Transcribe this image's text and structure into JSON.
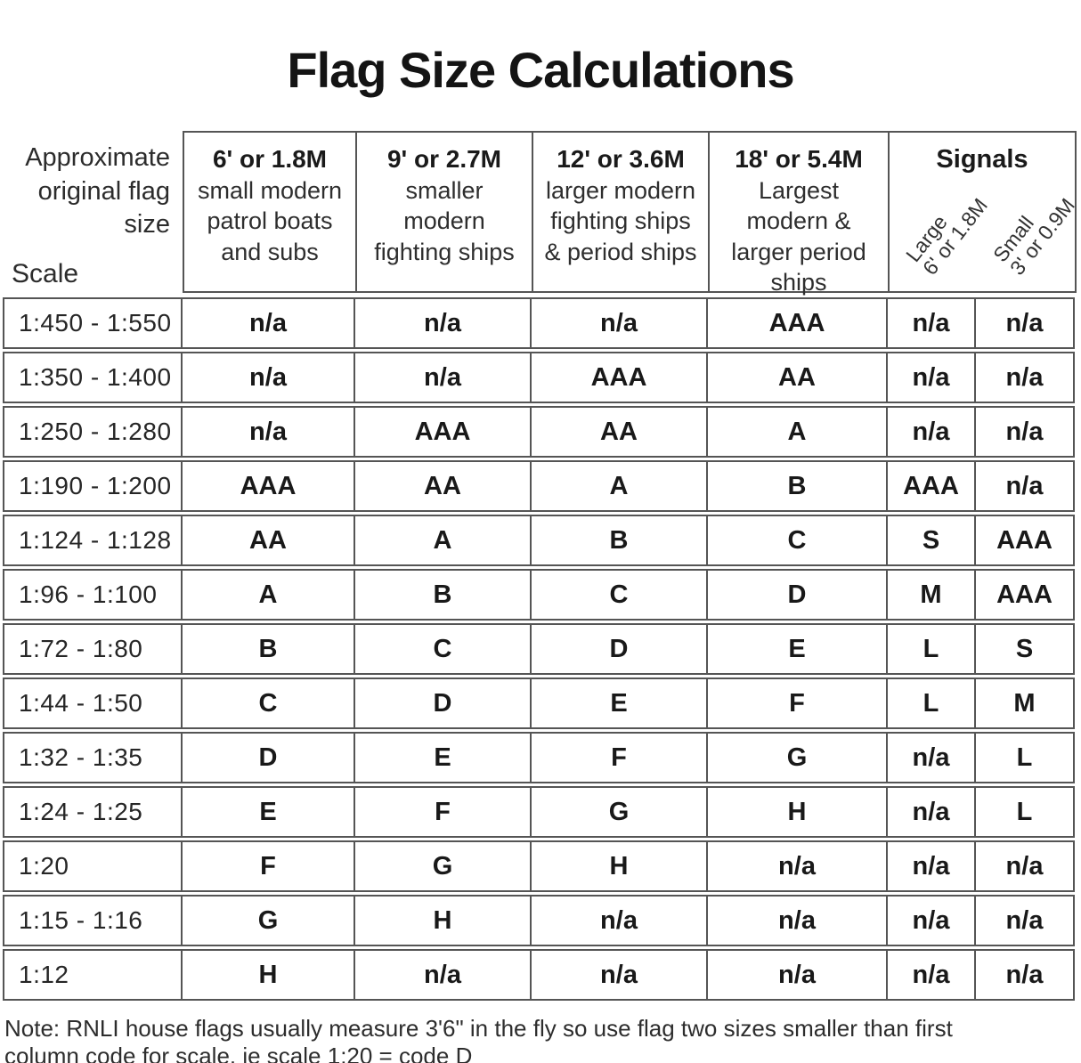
{
  "title": "Flag Size Calculations",
  "corner_header": {
    "approx_lines": [
      "Approximate",
      "original flag",
      "size"
    ],
    "scale_label": "Scale"
  },
  "columns": [
    {
      "size": "6' or 1.8M",
      "desc_lines": [
        "small modern",
        "patrol boats",
        "and subs"
      ]
    },
    {
      "size": "9' or 2.7M",
      "desc_lines": [
        "smaller",
        "modern",
        "fighting ships"
      ]
    },
    {
      "size": "12' or 3.6M",
      "desc_lines": [
        "larger modern",
        "fighting ships",
        "& period ships"
      ]
    },
    {
      "size": "18' or 5.4M",
      "desc_lines": [
        "Largest",
        "modern &",
        "larger period",
        "ships"
      ]
    }
  ],
  "signals": {
    "title": "Signals",
    "large_lines": [
      "Large",
      "6' or 1.8M"
    ],
    "small_lines": [
      "Small",
      "3' or 0.9M"
    ]
  },
  "rows": [
    {
      "scale": "1:450 - 1:550",
      "codes": [
        "n/a",
        "n/a",
        "n/a",
        "AAA",
        "n/a",
        "n/a"
      ]
    },
    {
      "scale": "1:350 - 1:400",
      "codes": [
        "n/a",
        "n/a",
        "AAA",
        "AA",
        "n/a",
        "n/a"
      ]
    },
    {
      "scale": "1:250 - 1:280",
      "codes": [
        "n/a",
        "AAA",
        "AA",
        "A",
        "n/a",
        "n/a"
      ]
    },
    {
      "scale": "1:190 - 1:200",
      "codes": [
        "AAA",
        "AA",
        "A",
        "B",
        "AAA",
        "n/a"
      ]
    },
    {
      "scale": "1:124 - 1:128",
      "codes": [
        "AA",
        "A",
        "B",
        "C",
        "S",
        "AAA"
      ]
    },
    {
      "scale": "1:96 - 1:100",
      "codes": [
        "A",
        "B",
        "C",
        "D",
        "M",
        "AAA"
      ]
    },
    {
      "scale": "1:72 - 1:80",
      "codes": [
        "B",
        "C",
        "D",
        "E",
        "L",
        "S"
      ]
    },
    {
      "scale": "1:44 - 1:50",
      "codes": [
        "C",
        "D",
        "E",
        "F",
        "L",
        "M"
      ]
    },
    {
      "scale": "1:32 - 1:35",
      "codes": [
        "D",
        "E",
        "F",
        "G",
        "n/a",
        "L"
      ]
    },
    {
      "scale": "1:24 - 1:25",
      "codes": [
        "E",
        "F",
        "G",
        "H",
        "n/a",
        "L"
      ]
    },
    {
      "scale": "1:20",
      "codes": [
        "F",
        "G",
        "H",
        "n/a",
        "n/a",
        "n/a"
      ]
    },
    {
      "scale": "1:15 - 1:16",
      "codes": [
        "G",
        "H",
        "n/a",
        "n/a",
        "n/a",
        "n/a"
      ]
    },
    {
      "scale": "1:12",
      "codes": [
        "H",
        "n/a",
        "n/a",
        "n/a",
        "n/a",
        "n/a"
      ]
    }
  ],
  "note_lines": [
    "Note: RNLI house flags usually measure 3'6\" in the fly so use flag two sizes smaller than first",
    "column code for scale.  ie scale 1:20 = code D"
  ]
}
